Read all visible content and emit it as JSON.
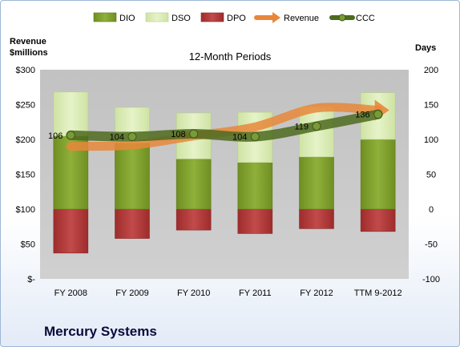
{
  "chart_data": {
    "type": "bar",
    "title": "12-Month Periods",
    "company": "Mercury Systems",
    "left_axis_label": [
      "Revenue",
      "$millions"
    ],
    "right_axis_label": "Days",
    "left_axis": {
      "min": 0,
      "max": 300,
      "ticks": [
        "$-",
        "$50",
        "$100",
        "$150",
        "$200",
        "$250",
        "$300"
      ]
    },
    "right_axis": {
      "min": -100,
      "max": 200,
      "ticks": [
        "-100",
        "-50",
        "0",
        "50",
        "100",
        "150",
        "200"
      ]
    },
    "categories": [
      "FY 2008",
      "FY 2009",
      "FY 2010",
      "FY 2011",
      "FY 2012",
      "TTM 9-2012"
    ],
    "legend": [
      "DIO",
      "DSO",
      "DPO",
      "Revenue",
      "CCC"
    ],
    "colors": {
      "DIO": "#7f9e2c",
      "DSO": "#d9ecb0",
      "DPO": "#b33a3a",
      "Revenue": "#e8873a",
      "CCC": "#4d6a1f",
      "plot_bg": "#c8c8c8"
    },
    "series": [
      {
        "name": "DIO",
        "unit": "days",
        "values": [
          105,
          95,
          72,
          67,
          75,
          100
        ]
      },
      {
        "name": "DSO",
        "unit": "days",
        "values": [
          63,
          51,
          66,
          72,
          72,
          67
        ]
      },
      {
        "name": "DPO",
        "unit": "days",
        "values": [
          -63,
          -42,
          -30,
          -35,
          -28,
          -32
        ]
      },
      {
        "name": "Revenue",
        "unit": "$millions",
        "values": [
          190,
          192,
          205,
          218,
          245,
          242
        ]
      },
      {
        "name": "CCC",
        "unit": "days",
        "values": [
          106,
          104,
          108,
          104,
          119,
          136
        ]
      }
    ],
    "ccc_labels": [
      "106",
      "104",
      "108",
      "104",
      "119",
      "136"
    ],
    "legend_position": "top",
    "grid": false
  }
}
